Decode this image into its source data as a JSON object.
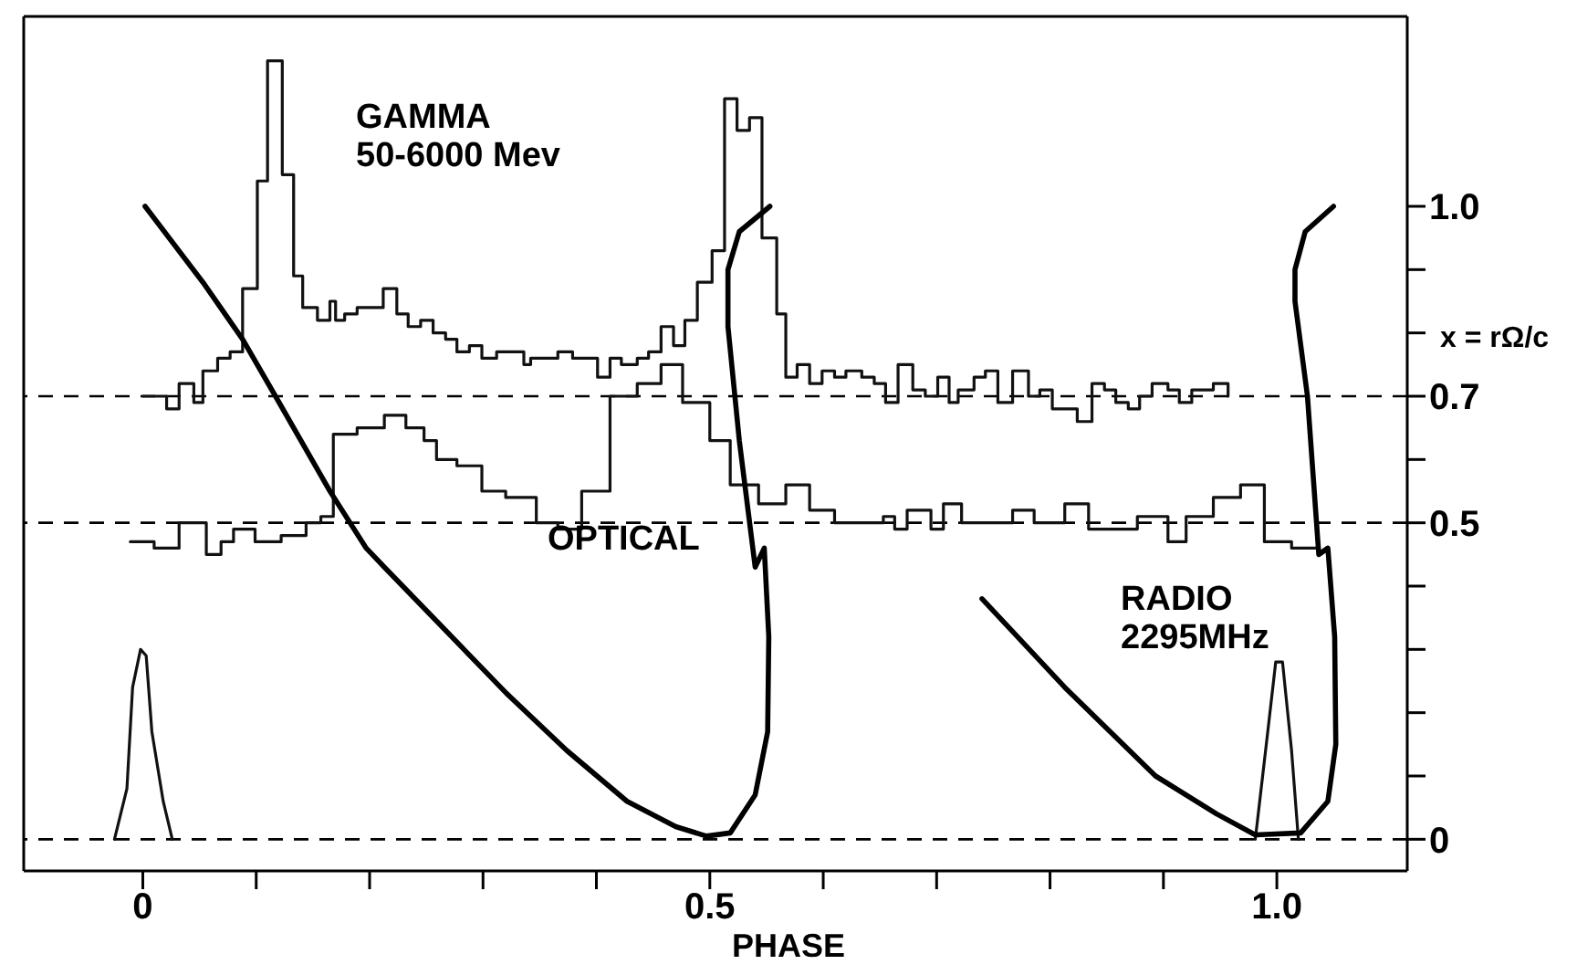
{
  "chart_data": {
    "type": "step",
    "xlabel": "PHASE",
    "ylabel": "x = rΩ/c",
    "xlim": [
      -0.105,
      1.115
    ],
    "ylim": [
      -0.05,
      1.3
    ],
    "xticks": [
      0,
      {
        "value": 0.1,
        "label": null
      },
      {
        "value": 0.2,
        "label": null
      },
      {
        "value": 0.3,
        "label": null
      },
      {
        "value": 0.4,
        "label": null
      },
      0.5,
      {
        "value": 0.6,
        "label": null
      },
      {
        "value": 0.7,
        "label": null
      },
      {
        "value": 0.8,
        "label": null
      },
      {
        "value": 0.9,
        "label": null
      },
      {
        "value": 1,
        "label": "1.0"
      }
    ],
    "yticks": [
      0,
      {
        "value": 0.1,
        "label": null
      },
      {
        "value": 0.2,
        "label": null
      },
      {
        "value": 0.3,
        "label": null
      },
      {
        "value": 0.4,
        "label": null
      },
      0.5,
      {
        "value": 0.6,
        "label": null
      },
      0.7,
      {
        "value": 0.8,
        "label": null
      },
      {
        "value": 0.9,
        "label": null
      },
      {
        "value": 1,
        "label": "1.0"
      }
    ],
    "ref_lines": [
      {
        "axis": "y",
        "value": 0,
        "line_style": "dashed",
        "color": "#000000"
      },
      {
        "axis": "y",
        "value": 0.5,
        "line_style": "dashed",
        "color": "#000000"
      },
      {
        "axis": "y",
        "value": 0.7,
        "line_style": "dashed",
        "color": "#000000"
      }
    ],
    "series": [
      {
        "name": "GAMMA 50-6000 Mev",
        "color": "#111111",
        "x": [
          0,
          0.021,
          0.032,
          0.045,
          0.053,
          0.066,
          0.077,
          0.088,
          0.101,
          0.11,
          0.123,
          0.133,
          0.141,
          0.154,
          0.165,
          0.17,
          0.178,
          0.189,
          0.202,
          0.212,
          0.224,
          0.234,
          0.245,
          0.256,
          0.267,
          0.277,
          0.288,
          0.299,
          0.312,
          0.323,
          0.336,
          0.342,
          0.366,
          0.379,
          0.401,
          0.412,
          0.422,
          0.436,
          0.446,
          0.457,
          0.468,
          0.478,
          0.489,
          0.502,
          0.513,
          0.524,
          0.535,
          0.546,
          0.559,
          0.567,
          0.577,
          0.588,
          0.599,
          0.61,
          0.62,
          0.634,
          0.645,
          0.655,
          0.666,
          0.679,
          0.69,
          0.701,
          0.711,
          0.719,
          0.733,
          0.743,
          0.754,
          0.767,
          0.781,
          0.791,
          0.802,
          0.824,
          0.837,
          0.848,
          0.858,
          0.869,
          0.879,
          0.89,
          0.904,
          0.914,
          0.925,
          0.944,
          0.957
        ],
        "values": [
          0.7,
          0.68,
          0.72,
          0.69,
          0.74,
          0.76,
          0.77,
          0.87,
          1.04,
          1.23,
          1.05,
          0.89,
          0.84,
          0.82,
          0.85,
          0.82,
          0.83,
          0.84,
          0.84,
          0.87,
          0.83,
          0.81,
          0.82,
          0.8,
          0.79,
          0.77,
          0.78,
          0.76,
          0.77,
          0.77,
          0.75,
          0.76,
          0.77,
          0.76,
          0.73,
          0.76,
          0.75,
          0.76,
          0.77,
          0.81,
          0.78,
          0.82,
          0.88,
          0.93,
          1.17,
          1.12,
          1.14,
          0.95,
          0.83,
          0.73,
          0.75,
          0.72,
          0.74,
          0.73,
          0.74,
          0.73,
          0.72,
          0.69,
          0.75,
          0.71,
          0.7,
          0.73,
          0.69,
          0.71,
          0.73,
          0.74,
          0.69,
          0.74,
          0.7,
          0.71,
          0.68,
          0.66,
          0.72,
          0.71,
          0.69,
          0.68,
          0.7,
          0.72,
          0.71,
          0.69,
          0.71,
          0.72,
          0.7
        ]
      },
      {
        "name": "OPTICAL",
        "color": "#111111",
        "x": [
          -0.011,
          0.01,
          0.032,
          0.056,
          0.069,
          0.08,
          0.099,
          0.122,
          0.144,
          0.157,
          0.168,
          0.189,
          0.213,
          0.232,
          0.248,
          0.259,
          0.277,
          0.299,
          0.32,
          0.347,
          0.366,
          0.387,
          0.412,
          0.436,
          0.457,
          0.476,
          0.5,
          0.518,
          0.543,
          0.567,
          0.588,
          0.61,
          0.631,
          0.653,
          0.663,
          0.674,
          0.695,
          0.706,
          0.722,
          0.743,
          0.767,
          0.786,
          0.813,
          0.834,
          0.856,
          0.877,
          0.904,
          0.92,
          0.944,
          0.968,
          0.989,
          1.013,
          1.037
        ],
        "values": [
          0.47,
          0.46,
          0.5,
          0.45,
          0.47,
          0.49,
          0.47,
          0.48,
          0.5,
          0.51,
          0.64,
          0.65,
          0.67,
          0.65,
          0.63,
          0.6,
          0.59,
          0.55,
          0.54,
          0.5,
          0.49,
          0.55,
          0.7,
          0.72,
          0.75,
          0.69,
          0.63,
          0.56,
          0.53,
          0.56,
          0.52,
          0.5,
          0.5,
          0.51,
          0.49,
          0.52,
          0.49,
          0.53,
          0.5,
          0.5,
          0.52,
          0.5,
          0.53,
          0.49,
          0.49,
          0.51,
          0.47,
          0.51,
          0.54,
          0.56,
          0.47,
          0.46,
          0.46
        ]
      },
      {
        "name": "RADIO 2295MHz",
        "type": "line",
        "color": "#111111",
        "x": [
          -0.025,
          -0.014,
          -0.009,
          -0.002,
          0.003,
          0.008,
          0.018,
          0.026,
          0.5,
          0.981,
          0.992,
          0.999,
          1.005,
          1.013,
          1.019
        ],
        "values": [
          0,
          0.08,
          0.24,
          0.3,
          0.29,
          0.17,
          0.06,
          0,
          null,
          0,
          0.17,
          0.28,
          0.28,
          0.14,
          0
        ]
      },
      {
        "type": "line",
        "color": "#000000",
        "x": [
          0.002,
          0.053,
          0.088,
          0.117,
          0.165,
          0.197,
          0.213,
          0.267,
          0.321,
          0.374,
          0.427,
          0.47,
          0.497,
          0.518,
          0.54,
          0.551,
          0.552,
          0.548,
          0.54,
          0.526,
          0.516,
          0.516,
          0.526,
          0.553,
          0.7,
          0.74,
          0.813,
          0.893,
          0.947,
          0.981,
          1.021,
          1.045,
          1.052,
          1.051,
          1.045,
          1.037,
          1.027,
          1.016,
          1.016,
          1.025,
          1.05
        ],
        "values": [
          1.0,
          0.88,
          0.79,
          0.7,
          0.55,
          0.46,
          0.43,
          0.33,
          0.23,
          0.14,
          0.06,
          0.02,
          0.005,
          0.01,
          0.07,
          0.17,
          0.32,
          0.46,
          0.43,
          0.63,
          0.81,
          0.9,
          0.96,
          1.0,
          null,
          0.38,
          0.24,
          0.1,
          0.04,
          0.007,
          0.01,
          0.06,
          0.15,
          0.32,
          0.46,
          0.45,
          0.7,
          0.85,
          0.9,
          0.96,
          1.0
        ]
      }
    ]
  }
}
